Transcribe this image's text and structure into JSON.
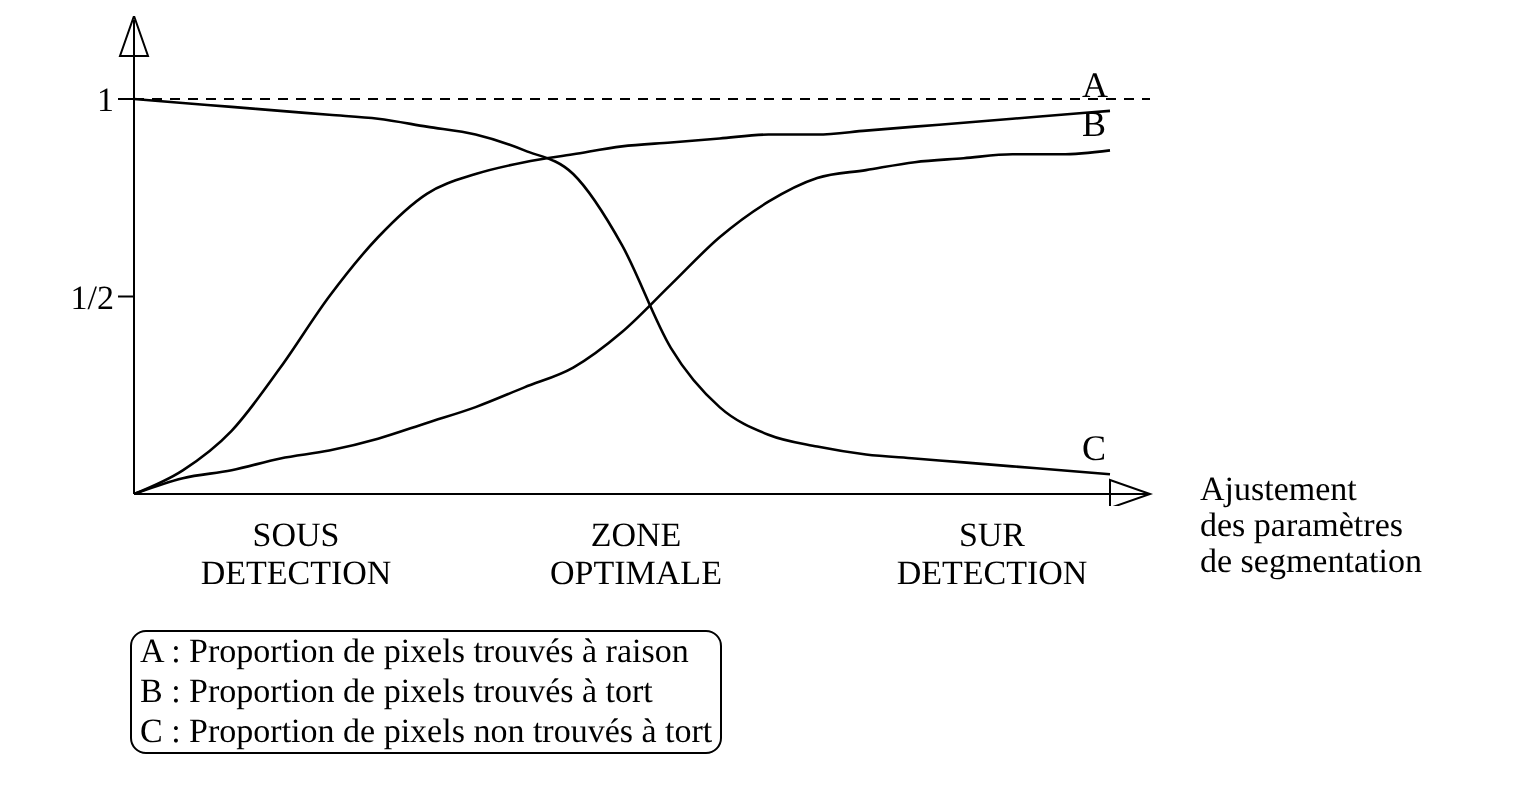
{
  "chart_data": {
    "type": "line",
    "xlabel": "Ajustement\ndes paramètres\nde segmentation",
    "categories": [
      null,
      null,
      null,
      null,
      null,
      null,
      null,
      null,
      null,
      null,
      null,
      null,
      null,
      null,
      null,
      null,
      null,
      null,
      null,
      null,
      null
    ],
    "series": [
      {
        "name": "A",
        "color": "#000000",
        "values": [
          0,
          0.06,
          0.16,
          0.32,
          0.5,
          0.65,
          0.76,
          0.81,
          0.84,
          0.86,
          0.88,
          0.89,
          0.9,
          0.91,
          0.91,
          0.92,
          0.93,
          0.94,
          0.95,
          0.96,
          0.97
        ]
      },
      {
        "name": "B",
        "color": "#000000",
        "values": [
          0,
          0.04,
          0.06,
          0.09,
          0.11,
          0.14,
          0.18,
          0.22,
          0.27,
          0.32,
          0.41,
          0.53,
          0.65,
          0.74,
          0.8,
          0.82,
          0.84,
          0.85,
          0.86,
          0.86,
          0.87
        ]
      },
      {
        "name": "C",
        "color": "#000000",
        "values": [
          1,
          0.99,
          0.98,
          0.97,
          0.96,
          0.95,
          0.93,
          0.91,
          0.87,
          0.81,
          0.63,
          0.37,
          0.22,
          0.15,
          0.12,
          0.1,
          0.09,
          0.08,
          0.07,
          0.06,
          0.05
        ]
      }
    ],
    "ylim": [
      0,
      1.2
    ],
    "yticks": [
      {
        "value": 1,
        "label": "1"
      },
      {
        "value": 0.5,
        "label": "1/2"
      }
    ],
    "ref_lines": [
      {
        "axis": "y",
        "value": 1,
        "line_style": "dashed",
        "color": "#000000"
      }
    ],
    "annotations": [
      "SOUS\nDETECTION",
      "ZONE\nOPTIMALE",
      "SUR\nDETECTION",
      "A : Proportion de pixels trouvés à raison",
      "B : Proportion de pixels trouvés à tort",
      "C : Proportion de pixels non trouvés à tort"
    ],
    "tick_labels": "y",
    "grid": false,
    "legend": false,
    "marker": "none",
    "line_style": "solid"
  }
}
